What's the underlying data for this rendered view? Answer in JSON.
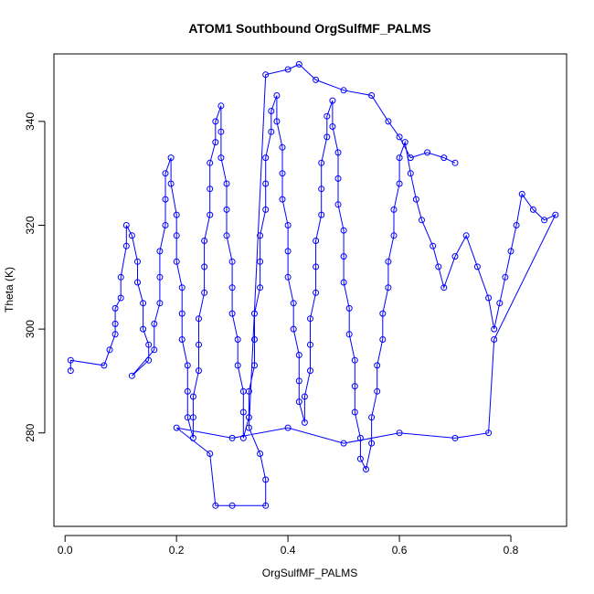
{
  "chart_data": {
    "type": "scatter",
    "title": "ATOM1 Southbound OrgSulfMF_PALMS",
    "xlabel": "OrgSulfMF_PALMS",
    "ylabel": "Theta (K)",
    "xlim": [
      -0.02,
      0.9
    ],
    "ylim": [
      262,
      353
    ],
    "x_ticks": [
      "0.0",
      "0.2",
      "0.4",
      "0.6",
      "0.8"
    ],
    "x_tick_values": [
      0.0,
      0.2,
      0.4,
      0.6,
      0.8
    ],
    "y_ticks": [
      "280",
      "300",
      "320",
      "340"
    ],
    "y_tick_values": [
      280,
      300,
      320,
      340
    ],
    "series_color": "#0000ff",
    "marker": "open-circle",
    "connected": true,
    "grid": false,
    "legend": "none",
    "points": [
      [
        0.01,
        292
      ],
      [
        0.01,
        294
      ],
      [
        0.07,
        293
      ],
      [
        0.08,
        296
      ],
      [
        0.09,
        299
      ],
      [
        0.09,
        301
      ],
      [
        0.09,
        304
      ],
      [
        0.1,
        306
      ],
      [
        0.1,
        310
      ],
      [
        0.11,
        316
      ],
      [
        0.11,
        320
      ],
      [
        0.12,
        318
      ],
      [
        0.13,
        313
      ],
      [
        0.13,
        309
      ],
      [
        0.14,
        305
      ],
      [
        0.14,
        300
      ],
      [
        0.15,
        297
      ],
      [
        0.15,
        294
      ],
      [
        0.12,
        291
      ],
      [
        0.16,
        296
      ],
      [
        0.16,
        301
      ],
      [
        0.17,
        305
      ],
      [
        0.17,
        310
      ],
      [
        0.17,
        315
      ],
      [
        0.18,
        320
      ],
      [
        0.18,
        325
      ],
      [
        0.18,
        330
      ],
      [
        0.19,
        333
      ],
      [
        0.19,
        328
      ],
      [
        0.2,
        322
      ],
      [
        0.2,
        318
      ],
      [
        0.2,
        313
      ],
      [
        0.21,
        308
      ],
      [
        0.21,
        303
      ],
      [
        0.21,
        298
      ],
      [
        0.22,
        293
      ],
      [
        0.22,
        288
      ],
      [
        0.22,
        283
      ],
      [
        0.23,
        279
      ],
      [
        0.23,
        283
      ],
      [
        0.23,
        287
      ],
      [
        0.24,
        292
      ],
      [
        0.24,
        297
      ],
      [
        0.24,
        302
      ],
      [
        0.25,
        307
      ],
      [
        0.25,
        312
      ],
      [
        0.25,
        317
      ],
      [
        0.26,
        322
      ],
      [
        0.26,
        327
      ],
      [
        0.26,
        332
      ],
      [
        0.27,
        336
      ],
      [
        0.27,
        340
      ],
      [
        0.28,
        343
      ],
      [
        0.28,
        338
      ],
      [
        0.28,
        333
      ],
      [
        0.29,
        328
      ],
      [
        0.29,
        323
      ],
      [
        0.29,
        318
      ],
      [
        0.3,
        313
      ],
      [
        0.3,
        308
      ],
      [
        0.3,
        303
      ],
      [
        0.31,
        298
      ],
      [
        0.31,
        293
      ],
      [
        0.32,
        288
      ],
      [
        0.32,
        284
      ],
      [
        0.32,
        279
      ],
      [
        0.33,
        283
      ],
      [
        0.33,
        288
      ],
      [
        0.34,
        293
      ],
      [
        0.34,
        298
      ],
      [
        0.34,
        303
      ],
      [
        0.35,
        308
      ],
      [
        0.35,
        313
      ],
      [
        0.35,
        318
      ],
      [
        0.36,
        323
      ],
      [
        0.36,
        328
      ],
      [
        0.36,
        333
      ],
      [
        0.37,
        338
      ],
      [
        0.37,
        342
      ],
      [
        0.38,
        345
      ],
      [
        0.38,
        340
      ],
      [
        0.39,
        335
      ],
      [
        0.39,
        330
      ],
      [
        0.39,
        325
      ],
      [
        0.4,
        320
      ],
      [
        0.4,
        315
      ],
      [
        0.4,
        310
      ],
      [
        0.41,
        305
      ],
      [
        0.41,
        300
      ],
      [
        0.42,
        295
      ],
      [
        0.42,
        290
      ],
      [
        0.42,
        286
      ],
      [
        0.43,
        282
      ],
      [
        0.43,
        287
      ],
      [
        0.44,
        292
      ],
      [
        0.44,
        297
      ],
      [
        0.44,
        302
      ],
      [
        0.45,
        307
      ],
      [
        0.45,
        312
      ],
      [
        0.45,
        317
      ],
      [
        0.46,
        322
      ],
      [
        0.46,
        327
      ],
      [
        0.46,
        332
      ],
      [
        0.47,
        337
      ],
      [
        0.47,
        341
      ],
      [
        0.48,
        344
      ],
      [
        0.48,
        339
      ],
      [
        0.49,
        334
      ],
      [
        0.49,
        329
      ],
      [
        0.49,
        324
      ],
      [
        0.5,
        319
      ],
      [
        0.5,
        314
      ],
      [
        0.5,
        309
      ],
      [
        0.51,
        304
      ],
      [
        0.51,
        299
      ],
      [
        0.52,
        294
      ],
      [
        0.52,
        289
      ],
      [
        0.52,
        284
      ],
      [
        0.53,
        279
      ],
      [
        0.53,
        275
      ],
      [
        0.54,
        273
      ],
      [
        0.55,
        278
      ],
      [
        0.55,
        283
      ],
      [
        0.56,
        288
      ],
      [
        0.56,
        293
      ],
      [
        0.57,
        298
      ],
      [
        0.57,
        303
      ],
      [
        0.58,
        308
      ],
      [
        0.58,
        313
      ],
      [
        0.59,
        318
      ],
      [
        0.59,
        323
      ],
      [
        0.6,
        328
      ],
      [
        0.6,
        333
      ],
      [
        0.61,
        336
      ],
      [
        0.62,
        330
      ],
      [
        0.63,
        325
      ],
      [
        0.64,
        321
      ],
      [
        0.66,
        316
      ],
      [
        0.67,
        312
      ],
      [
        0.68,
        308
      ],
      [
        0.7,
        314
      ],
      [
        0.72,
        318
      ],
      [
        0.74,
        312
      ],
      [
        0.76,
        306
      ],
      [
        0.77,
        300
      ],
      [
        0.78,
        305
      ],
      [
        0.79,
        310
      ],
      [
        0.8,
        315
      ],
      [
        0.81,
        320
      ],
      [
        0.82,
        326
      ],
      [
        0.84,
        323
      ],
      [
        0.86,
        321
      ],
      [
        0.88,
        322
      ],
      [
        0.77,
        298
      ],
      [
        0.76,
        280
      ],
      [
        0.7,
        279
      ],
      [
        0.6,
        280
      ],
      [
        0.5,
        278
      ],
      [
        0.4,
        281
      ],
      [
        0.3,
        279
      ],
      [
        0.2,
        281
      ],
      [
        0.26,
        276
      ],
      [
        0.27,
        266
      ],
      [
        0.3,
        266
      ],
      [
        0.36,
        266
      ],
      [
        0.36,
        271
      ],
      [
        0.35,
        276
      ],
      [
        0.33,
        281
      ],
      [
        0.36,
        349
      ],
      [
        0.4,
        350
      ],
      [
        0.42,
        351
      ],
      [
        0.45,
        348
      ],
      [
        0.5,
        346
      ],
      [
        0.55,
        345
      ],
      [
        0.58,
        340
      ],
      [
        0.6,
        337
      ],
      [
        0.62,
        333
      ],
      [
        0.65,
        334
      ],
      [
        0.68,
        333
      ],
      [
        0.7,
        332
      ]
    ]
  }
}
